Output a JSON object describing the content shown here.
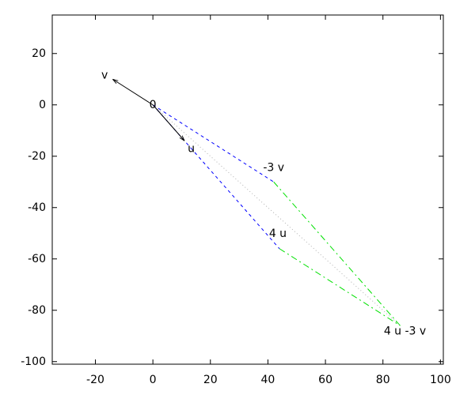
{
  "chart_data": {
    "type": "vector",
    "xlim": [
      -35,
      101
    ],
    "ylim": [
      -101,
      35
    ],
    "xticks": [
      -20,
      0,
      20,
      40,
      60,
      80,
      100
    ],
    "yticks": [
      -100,
      -80,
      -60,
      -40,
      -20,
      0,
      20
    ],
    "points": [
      {
        "label": "0",
        "x": 0,
        "y": 0
      },
      {
        "label": "v",
        "x": -14,
        "y": 10
      },
      {
        "label": "u",
        "x": 11,
        "y": -14
      },
      {
        "label": "-3 v",
        "x": 42,
        "y": -30
      },
      {
        "label": "4 u",
        "x": 44,
        "y": -56
      },
      {
        "label": "4 u -3 v",
        "x": 86,
        "y": -86
      }
    ],
    "segments": [
      {
        "from": 0,
        "to": 3,
        "color": "#0000ff",
        "dash": "dashed",
        "arrow": false
      },
      {
        "from": 0,
        "to": 4,
        "color": "#0000ff",
        "dash": "dashed",
        "arrow": false
      },
      {
        "from": 3,
        "to": 5,
        "color": "#00e000",
        "dash": "dashdot",
        "arrow": false
      },
      {
        "from": 4,
        "to": 5,
        "color": "#00e000",
        "dash": "dashdot",
        "arrow": false
      },
      {
        "from": 0,
        "to": 5,
        "color": "#b0b0b0",
        "dash": "dotted",
        "arrow": false
      },
      {
        "from": 0,
        "to": 1,
        "color": "#000000",
        "dash": "solid",
        "arrow": true
      },
      {
        "from": 0,
        "to": 2,
        "color": "#000000",
        "dash": "solid",
        "arrow": true
      }
    ]
  }
}
